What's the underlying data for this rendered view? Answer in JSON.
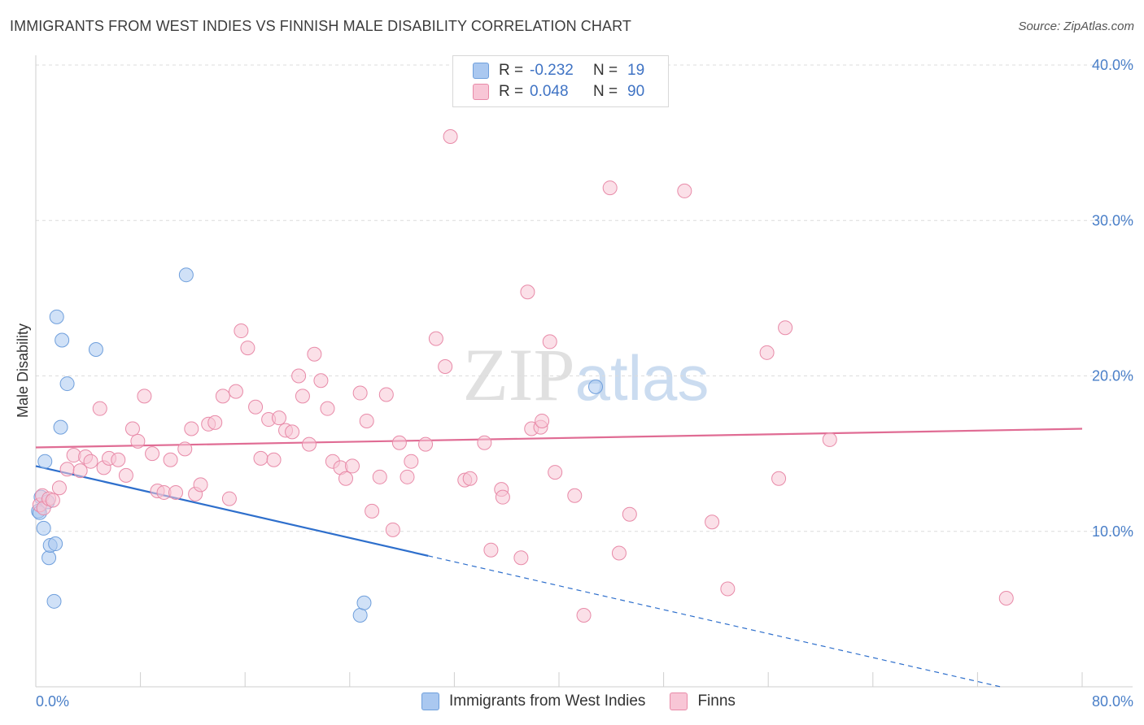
{
  "header": {
    "title": "IMMIGRANTS FROM WEST INDIES VS FINNISH MALE DISABILITY CORRELATION CHART",
    "source": "Source: ZipAtlas.com"
  },
  "watermark": {
    "part1": "ZIP",
    "part2": "atlas"
  },
  "legend_top": {
    "rows": [
      {
        "r_label": "R =",
        "r_value": "-0.232",
        "n_label": "N =",
        "n_value": "19",
        "color": "#aac8f0",
        "border": "#6f9fdc"
      },
      {
        "r_label": "R =",
        "r_value": "0.048",
        "n_label": "N =",
        "n_value": "90",
        "color": "#f8c6d6",
        "border": "#e88aa8"
      }
    ]
  },
  "legend_bottom": {
    "items": [
      {
        "label": "Immigrants from West Indies",
        "color": "#aac8f0",
        "border": "#6f9fdc"
      },
      {
        "label": "Finns",
        "color": "#f8c6d6",
        "border": "#e88aa8"
      }
    ]
  },
  "chart_data": {
    "type": "scatter",
    "xlabel": "",
    "ylabel": "Male Disability",
    "xlim": [
      0,
      80
    ],
    "ylim": [
      0,
      40
    ],
    "x_tick_labels": [
      "0.0%",
      "80.0%"
    ],
    "y_ticks": [
      10,
      20,
      30,
      40
    ],
    "y_tick_labels": [
      "10.0%",
      "20.0%",
      "30.0%",
      "40.0%"
    ],
    "grid": true,
    "legend_position": "top-center",
    "series": [
      {
        "name": "Immigrants from West Indies",
        "color": "#6f9fdc",
        "fill": "#aac8f0",
        "trend_color": "#2e6fcc",
        "trend": {
          "x_start": 0,
          "y_start": 14.2,
          "x_solid_end": 30,
          "x_end": 80,
          "y_end": -1.2
        },
        "points": [
          [
            0.2,
            11.3
          ],
          [
            0.3,
            11.2
          ],
          [
            0.6,
            10.2
          ],
          [
            0.4,
            12.2
          ],
          [
            0.9,
            11.9
          ],
          [
            0.7,
            14.5
          ],
          [
            1.0,
            8.3
          ],
          [
            1.1,
            9.1
          ],
          [
            1.5,
            9.2
          ],
          [
            1.4,
            5.5
          ],
          [
            1.9,
            16.7
          ],
          [
            2.0,
            22.3
          ],
          [
            2.4,
            19.5
          ],
          [
            1.6,
            23.8
          ],
          [
            4.6,
            21.7
          ],
          [
            11.5,
            26.5
          ],
          [
            24.8,
            4.6
          ],
          [
            25.1,
            5.4
          ],
          [
            42.8,
            19.3
          ]
        ]
      },
      {
        "name": "Finns",
        "color": "#e88aa8",
        "fill": "#f8c6d6",
        "trend_color": "#e06c94",
        "trend": {
          "x_start": 0,
          "y_start": 15.4,
          "x_end": 80,
          "y_end": 16.6
        },
        "points": [
          [
            0.3,
            11.7
          ],
          [
            0.5,
            12.3
          ],
          [
            0.6,
            11.5
          ],
          [
            1.0,
            12.1
          ],
          [
            1.3,
            12.0
          ],
          [
            1.8,
            12.8
          ],
          [
            2.4,
            14.0
          ],
          [
            2.9,
            14.9
          ],
          [
            3.4,
            13.9
          ],
          [
            3.8,
            14.8
          ],
          [
            4.2,
            14.5
          ],
          [
            4.9,
            17.9
          ],
          [
            5.2,
            14.1
          ],
          [
            5.6,
            14.7
          ],
          [
            6.3,
            14.6
          ],
          [
            6.9,
            13.6
          ],
          [
            7.4,
            16.6
          ],
          [
            7.8,
            15.8
          ],
          [
            8.3,
            18.7
          ],
          [
            8.9,
            15.0
          ],
          [
            9.3,
            12.6
          ],
          [
            9.8,
            12.5
          ],
          [
            10.3,
            14.6
          ],
          [
            10.7,
            12.5
          ],
          [
            11.4,
            15.3
          ],
          [
            11.9,
            16.6
          ],
          [
            12.2,
            12.4
          ],
          [
            12.6,
            13.0
          ],
          [
            13.2,
            16.9
          ],
          [
            13.7,
            17.0
          ],
          [
            14.3,
            18.7
          ],
          [
            14.8,
            12.1
          ],
          [
            15.3,
            19.0
          ],
          [
            15.7,
            22.9
          ],
          [
            16.2,
            21.8
          ],
          [
            16.8,
            18.0
          ],
          [
            17.2,
            14.7
          ],
          [
            17.8,
            17.2
          ],
          [
            18.2,
            14.6
          ],
          [
            18.6,
            17.3
          ],
          [
            19.1,
            16.5
          ],
          [
            19.6,
            16.4
          ],
          [
            20.1,
            20.0
          ],
          [
            20.4,
            18.7
          ],
          [
            20.9,
            15.6
          ],
          [
            21.3,
            21.4
          ],
          [
            21.8,
            19.7
          ],
          [
            22.3,
            17.9
          ],
          [
            22.7,
            14.5
          ],
          [
            23.3,
            14.1
          ],
          [
            23.7,
            13.4
          ],
          [
            24.2,
            14.2
          ],
          [
            24.8,
            18.9
          ],
          [
            25.3,
            17.1
          ],
          [
            25.7,
            11.3
          ],
          [
            26.3,
            13.5
          ],
          [
            26.8,
            18.8
          ],
          [
            27.3,
            10.1
          ],
          [
            27.8,
            15.7
          ],
          [
            28.4,
            13.5
          ],
          [
            28.7,
            14.5
          ],
          [
            29.8,
            15.6
          ],
          [
            30.6,
            22.4
          ],
          [
            31.3,
            20.6
          ],
          [
            31.7,
            35.4
          ],
          [
            32.8,
            13.3
          ],
          [
            33.2,
            13.4
          ],
          [
            34.3,
            15.7
          ],
          [
            34.8,
            8.8
          ],
          [
            35.6,
            12.7
          ],
          [
            35.7,
            12.2
          ],
          [
            37.1,
            8.3
          ],
          [
            37.6,
            25.4
          ],
          [
            37.9,
            16.6
          ],
          [
            38.6,
            16.7
          ],
          [
            38.7,
            17.1
          ],
          [
            39.3,
            22.2
          ],
          [
            39.7,
            13.8
          ],
          [
            41.2,
            12.3
          ],
          [
            41.9,
            4.6
          ],
          [
            43.9,
            32.1
          ],
          [
            44.6,
            8.6
          ],
          [
            45.4,
            11.1
          ],
          [
            49.6,
            31.9
          ],
          [
            51.7,
            10.6
          ],
          [
            52.9,
            6.3
          ],
          [
            55.9,
            21.5
          ],
          [
            56.8,
            13.4
          ],
          [
            57.3,
            23.1
          ],
          [
            60.7,
            15.9
          ],
          [
            74.2,
            5.7
          ]
        ]
      }
    ]
  }
}
